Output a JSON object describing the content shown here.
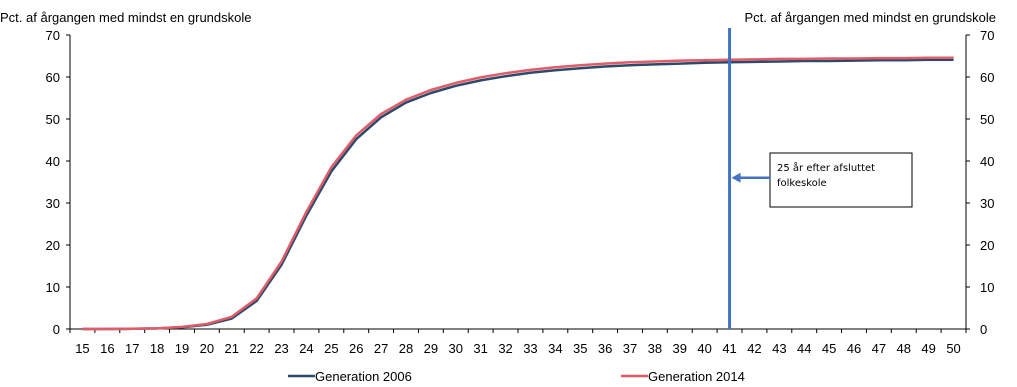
{
  "chart_data": {
    "type": "line",
    "ylabel_left": "Pct. af årgangen med mindst en grundskole",
    "ylabel_right": "Pct. af årgangen med mindst en grundskole",
    "ylim": [
      0,
      70
    ],
    "yticks": [
      "0",
      "10",
      "20",
      "30",
      "40",
      "50",
      "60",
      "70"
    ],
    "x": [
      "15",
      "16",
      "17",
      "18",
      "19",
      "20",
      "21",
      "22",
      "23",
      "24",
      "25",
      "26",
      "27",
      "28",
      "29",
      "30",
      "31",
      "32",
      "33",
      "34",
      "35",
      "36",
      "37",
      "38",
      "39",
      "40",
      "41",
      "42",
      "43",
      "44",
      "45",
      "46",
      "47",
      "48",
      "49",
      "50"
    ],
    "series": [
      {
        "name": "Generation 2006",
        "color": "#2e4a6b",
        "values": [
          0.0,
          0.0,
          0.05,
          0.15,
          0.4,
          1.0,
          2.5,
          6.7,
          15.3,
          27.0,
          37.5,
          45.2,
          50.4,
          53.9,
          56.2,
          57.9,
          59.2,
          60.2,
          61.0,
          61.6,
          62.1,
          62.5,
          62.8,
          63.0,
          63.2,
          63.4,
          63.5,
          63.6,
          63.7,
          63.8,
          63.8,
          63.9,
          64.0,
          64.0,
          64.1,
          64.1
        ]
      },
      {
        "name": "Generation 2014",
        "color": "#e05c68",
        "values": [
          0.0,
          0.0,
          0.05,
          0.15,
          0.5,
          1.2,
          2.9,
          7.3,
          16.1,
          27.9,
          38.5,
          46.1,
          51.2,
          54.6,
          56.9,
          58.6,
          59.9,
          60.9,
          61.7,
          62.3,
          62.8,
          63.2,
          63.5,
          63.7,
          63.9,
          64.0,
          64.1,
          64.2,
          64.3,
          64.3,
          64.4,
          64.4,
          64.5,
          64.5,
          64.6,
          64.6
        ]
      }
    ],
    "marker": {
      "x": "41",
      "color": "#4472c4",
      "annotation": "25 år efter afsluttet folkeskole",
      "annotation_lines": [
        "25 år efter afsluttet",
        "folkeskole"
      ]
    },
    "legend_position": "bottom"
  }
}
